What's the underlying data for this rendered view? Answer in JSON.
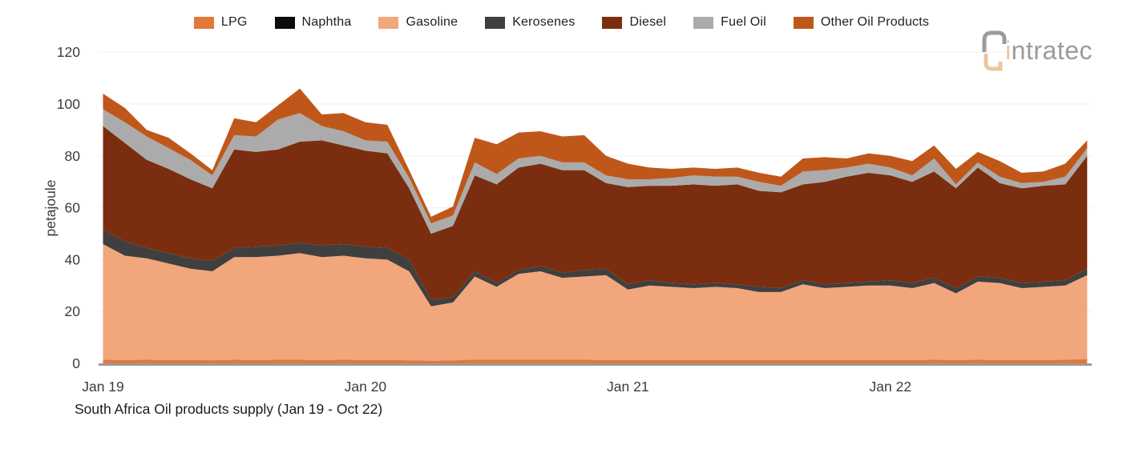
{
  "title": "South Africa Oil products supply (Jan 19 - Oct 22)",
  "logo": {
    "text": "intratec",
    "text_color": "#9b9b9b",
    "accent_color": "#ecc59e"
  },
  "legend": {
    "position": "top",
    "items": [
      {
        "label": "LPG",
        "color": "#e2783a"
      },
      {
        "label": "Naphtha",
        "color": "#0d0d0d"
      },
      {
        "label": "Gasoline",
        "color": "#f2a67c"
      },
      {
        "label": "Kerosenes",
        "color": "#3f3f3f"
      },
      {
        "label": "Diesel",
        "color": "#7a2e0f"
      },
      {
        "label": "Fuel Oil",
        "color": "#ababab"
      },
      {
        "label": "Other Oil Products",
        "color": "#c0571a"
      }
    ]
  },
  "y_axis": {
    "label": "petajoule",
    "ticks": [
      0,
      20,
      40,
      60,
      80,
      100,
      120
    ],
    "min": 0,
    "max": 120
  },
  "x_axis": {
    "visible_ticks": [
      {
        "label": "Jan 19",
        "month_index": 0
      },
      {
        "label": "Jan 20",
        "month_index": 12
      },
      {
        "label": "Jan 21",
        "month_index": 24
      },
      {
        "label": "Jan 22",
        "month_index": 36
      }
    ]
  },
  "chart_data": {
    "type": "area",
    "stacked": true,
    "grid": "horizontal-faint",
    "legend_position": "top",
    "title": "South Africa Oil products supply (Jan 19 - Oct 22)",
    "xlabel": "",
    "ylabel": "petajoule",
    "ylim": [
      0,
      120
    ],
    "categories": [
      "Jan 19",
      "Feb 19",
      "Mar 19",
      "Apr 19",
      "May 19",
      "Jun 19",
      "Jul 19",
      "Aug 19",
      "Sep 19",
      "Oct 19",
      "Nov 19",
      "Dec 19",
      "Jan 20",
      "Feb 20",
      "Mar 20",
      "Apr 20",
      "May 20",
      "Jun 20",
      "Jul 20",
      "Aug 20",
      "Sep 20",
      "Oct 20",
      "Nov 20",
      "Dec 20",
      "Jan 21",
      "Feb 21",
      "Mar 21",
      "Apr 21",
      "May 21",
      "Jun 21",
      "Jul 21",
      "Aug 21",
      "Sep 21",
      "Oct 21",
      "Nov 21",
      "Dec 21",
      "Jan 22",
      "Feb 22",
      "Mar 22",
      "Apr 22",
      "May 22",
      "Jun 22",
      "Jul 22",
      "Aug 22",
      "Sep 22",
      "Oct 22"
    ],
    "units": "petajoule",
    "series": [
      {
        "name": "LPG",
        "color": "#e2783a",
        "values": [
          1.4,
          1.3,
          1.4,
          1.3,
          1.3,
          1.2,
          1.4,
          1.3,
          1.4,
          1.4,
          1.3,
          1.4,
          1.3,
          1.3,
          1.2,
          1.0,
          1.1,
          1.5,
          1.4,
          1.4,
          1.4,
          1.4,
          1.4,
          1.3,
          1.3,
          1.3,
          1.3,
          1.3,
          1.3,
          1.3,
          1.3,
          1.3,
          1.3,
          1.3,
          1.3,
          1.3,
          1.3,
          1.3,
          1.4,
          1.3,
          1.4,
          1.3,
          1.3,
          1.3,
          1.4,
          1.7
        ]
      },
      {
        "name": "Naphtha",
        "color": "#0d0d0d",
        "values": [
          0,
          0,
          0,
          0,
          0,
          0,
          0,
          0,
          0,
          0,
          0,
          0,
          0,
          0,
          0,
          0,
          0,
          0,
          0,
          0,
          0,
          0,
          0,
          0,
          0,
          0,
          0,
          0,
          0,
          0,
          0,
          0,
          0,
          0,
          0,
          0,
          0,
          0,
          0,
          0,
          0,
          0,
          0,
          0,
          0,
          0
        ]
      },
      {
        "name": "Gasoline",
        "color": "#f2a67c",
        "values": [
          44.6,
          40.2,
          39.1,
          37.2,
          35.2,
          34.3,
          39.6,
          39.7,
          40.1,
          41.1,
          39.7,
          40.1,
          39.2,
          38.7,
          34.3,
          21.0,
          22.4,
          32.0,
          28.1,
          33.1,
          34.1,
          31.6,
          32.1,
          32.7,
          27.2,
          28.7,
          28.2,
          27.7,
          28.2,
          27.7,
          26.2,
          26.2,
          29.2,
          27.7,
          28.2,
          28.7,
          28.7,
          27.7,
          29.6,
          25.7,
          30.1,
          29.7,
          27.7,
          28.2,
          28.6,
          32.3
        ]
      },
      {
        "name": "Kerosenes",
        "color": "#3f3f3f",
        "values": [
          5.5,
          5.5,
          4.0,
          4.0,
          4.0,
          4.0,
          3.5,
          4.0,
          4.0,
          4.0,
          4.5,
          4.5,
          4.5,
          4.5,
          4.5,
          2.5,
          2.0,
          2.0,
          1.5,
          1.5,
          2.0,
          2.0,
          2.5,
          2.5,
          2.0,
          2.0,
          1.5,
          1.5,
          1.5,
          1.5,
          2.0,
          1.5,
          1.5,
          1.5,
          1.5,
          1.5,
          2.0,
          2.0,
          2.0,
          2.0,
          2.0,
          2.0,
          2.0,
          2.0,
          2.0,
          2.5
        ]
      },
      {
        "name": "Diesel",
        "color": "#7a2e0f",
        "values": [
          40.0,
          38.0,
          34.0,
          32.5,
          30.5,
          28.0,
          38.0,
          36.5,
          37.0,
          39.0,
          40.5,
          38.0,
          37.0,
          36.5,
          27.5,
          25.5,
          27.5,
          37.0,
          38.0,
          39.5,
          39.5,
          39.5,
          38.5,
          33.0,
          37.5,
          36.5,
          37.5,
          38.5,
          37.5,
          38.5,
          37.0,
          37.0,
          37.0,
          39.5,
          41.0,
          42.0,
          40.5,
          39.0,
          41.0,
          38.5,
          42.0,
          36.5,
          36.5,
          37.0,
          37.0,
          43.5
        ]
      },
      {
        "name": "Fuel Oil",
        "color": "#ababab",
        "values": [
          6.5,
          8.0,
          9.0,
          8.0,
          7.5,
          5.0,
          5.5,
          6.0,
          11.5,
          11.0,
          5.5,
          5.5,
          4.0,
          4.5,
          4.0,
          4.0,
          4.0,
          5.0,
          4.0,
          3.5,
          3.0,
          3.0,
          3.0,
          3.0,
          3.0,
          2.5,
          3.0,
          3.5,
          3.5,
          3.0,
          3.5,
          2.5,
          5.0,
          4.5,
          3.5,
          3.5,
          3.0,
          2.5,
          5.0,
          1.5,
          2.0,
          2.5,
          2.0,
          1.5,
          3.0,
          3.0
        ]
      },
      {
        "name": "Other Oil Products",
        "color": "#c0571a",
        "values": [
          6.0,
          5.5,
          2.5,
          4.0,
          2.5,
          2.0,
          6.5,
          5.5,
          5.5,
          9.5,
          4.5,
          7.0,
          7.0,
          6.5,
          3.0,
          2.5,
          3.5,
          9.5,
          11.5,
          10.0,
          9.5,
          10.0,
          10.5,
          7.5,
          6.0,
          4.5,
          3.5,
          3.0,
          3.0,
          3.5,
          3.5,
          3.5,
          5.0,
          5.0,
          3.5,
          4.0,
          4.5,
          5.5,
          5.0,
          6.0,
          4.0,
          6.0,
          4.0,
          4.0,
          5.0,
          3.0
        ]
      }
    ]
  },
  "style": {
    "axis_line_color": "#9a9a9a",
    "gridline_color": "#f2f2f2",
    "tick_label_color": "#3c3c3c"
  }
}
